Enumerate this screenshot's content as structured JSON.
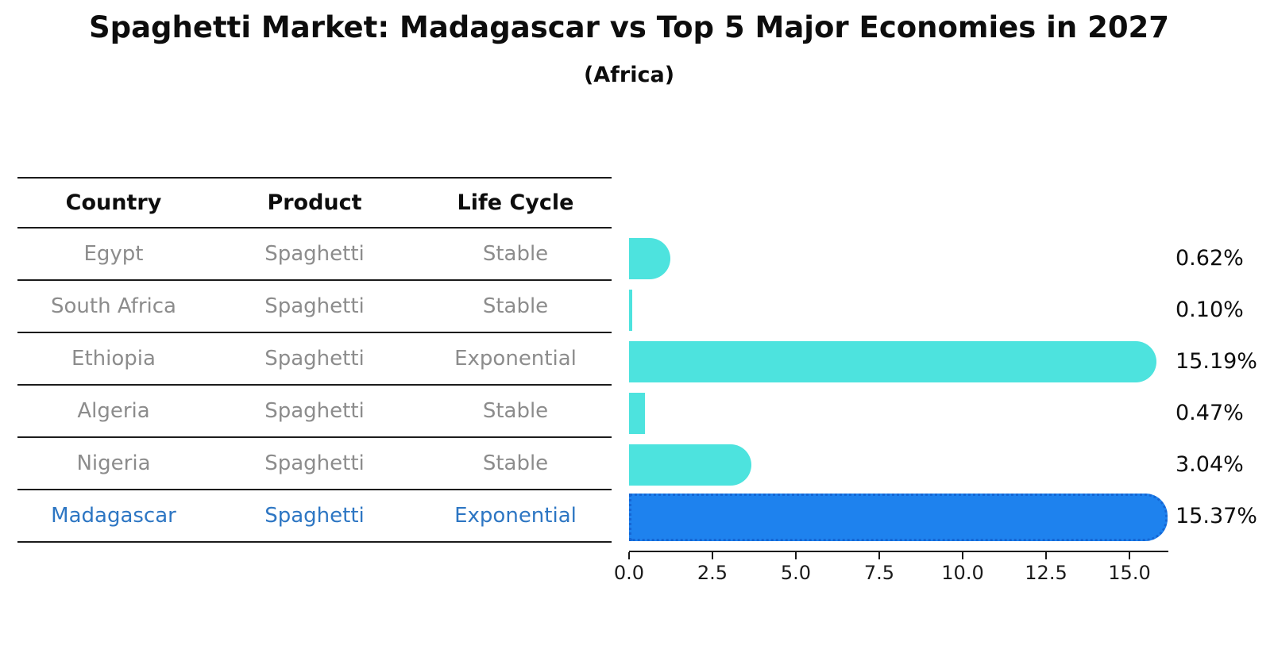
{
  "title": "Spaghetti Market: Madagascar vs Top 5 Major Economies in 2027",
  "subtitle": "(Africa)",
  "table": {
    "headers": [
      "Country",
      "Product",
      "Life Cycle"
    ],
    "rows": [
      {
        "country": "Egypt",
        "product": "Spaghetti",
        "life_cycle": "Stable"
      },
      {
        "country": "South Africa",
        "product": "Spaghetti",
        "life_cycle": "Stable"
      },
      {
        "country": "Ethiopia",
        "product": "Spaghetti",
        "life_cycle": "Exponential"
      },
      {
        "country": "Algeria",
        "product": "Spaghetti",
        "life_cycle": "Stable"
      },
      {
        "country": "Nigeria",
        "product": "Spaghetti",
        "life_cycle": "Stable"
      },
      {
        "country": "Madagascar",
        "product": "Spaghetti",
        "life_cycle": "Exponential"
      }
    ],
    "highlight_row": "Madagascar"
  },
  "chart_data": {
    "type": "bar",
    "orientation": "horizontal",
    "categories": [
      "Egypt",
      "South Africa",
      "Ethiopia",
      "Algeria",
      "Nigeria",
      "Madagascar"
    ],
    "values": [
      0.62,
      0.1,
      15.19,
      0.47,
      3.04,
      15.37
    ],
    "value_labels": [
      "0.62%",
      "0.10%",
      "15.19%",
      "0.47%",
      "3.04%",
      "15.37%"
    ],
    "x_tick_labels": [
      "0.0",
      "2.5",
      "5.0",
      "7.5",
      "10.0",
      "12.5",
      "15.0"
    ],
    "xlim": [
      0.0,
      16.2
    ],
    "grid": false,
    "legend": "none",
    "highlight_index": 5,
    "colors": {
      "bar_default": "#4de3de",
      "bar_highlight_fill": "#1e82ee",
      "bar_highlight_border": "#1566d4",
      "highlight_text": "#2d76c3",
      "table_text": "#8c8c8c",
      "axis": "#1b1b1b"
    }
  }
}
